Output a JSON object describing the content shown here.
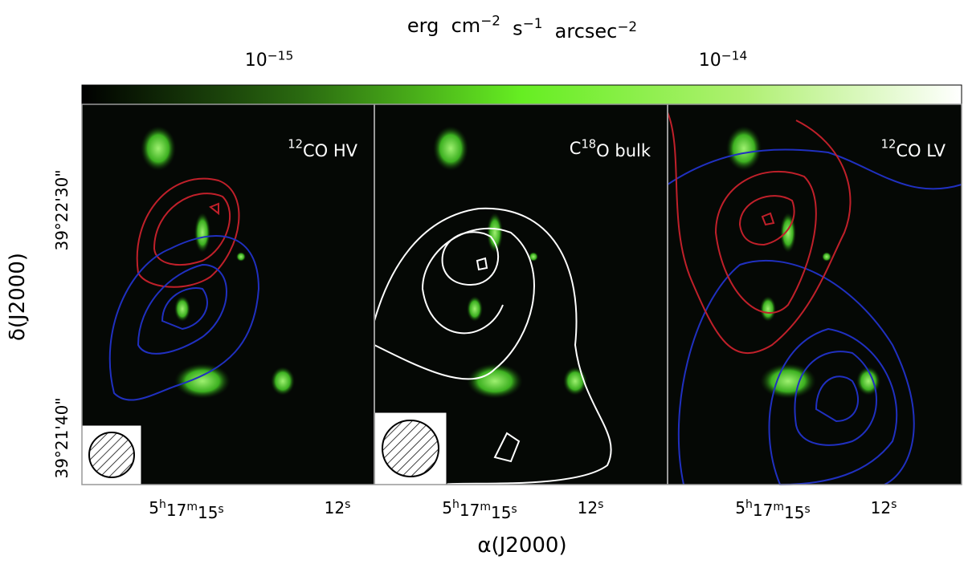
{
  "colorbar": {
    "label": [
      "erg  cm",
      {
        "sup": "−2"
      },
      "  s",
      {
        "sup": "−1"
      },
      "  arcsec",
      {
        "sup": "−2"
      }
    ],
    "ticks": [
      [
        "10",
        {
          "sup": "−15"
        }
      ],
      [
        "10",
        {
          "sup": "−14"
        }
      ]
    ]
  },
  "panels": [
    {
      "label": [
        {
          "sup": "12"
        },
        "CO HV"
      ]
    },
    {
      "label": [
        "C",
        {
          "sup": "18"
        },
        "O bulk"
      ]
    },
    {
      "label": [
        {
          "sup": "12"
        },
        "CO LV"
      ]
    }
  ],
  "y_axis": {
    "title": "δ(J2000)",
    "ticks": [
      "39°22'30\"",
      "39°21'40\""
    ]
  },
  "x_axis": {
    "title": "α(J2000)",
    "ticks": [
      [
        "5",
        {
          "sup": "h"
        },
        "17",
        {
          "sup": "m"
        },
        "15",
        {
          "sup": "s"
        }
      ],
      [
        "12",
        {
          "sup": "s"
        }
      ]
    ]
  }
}
